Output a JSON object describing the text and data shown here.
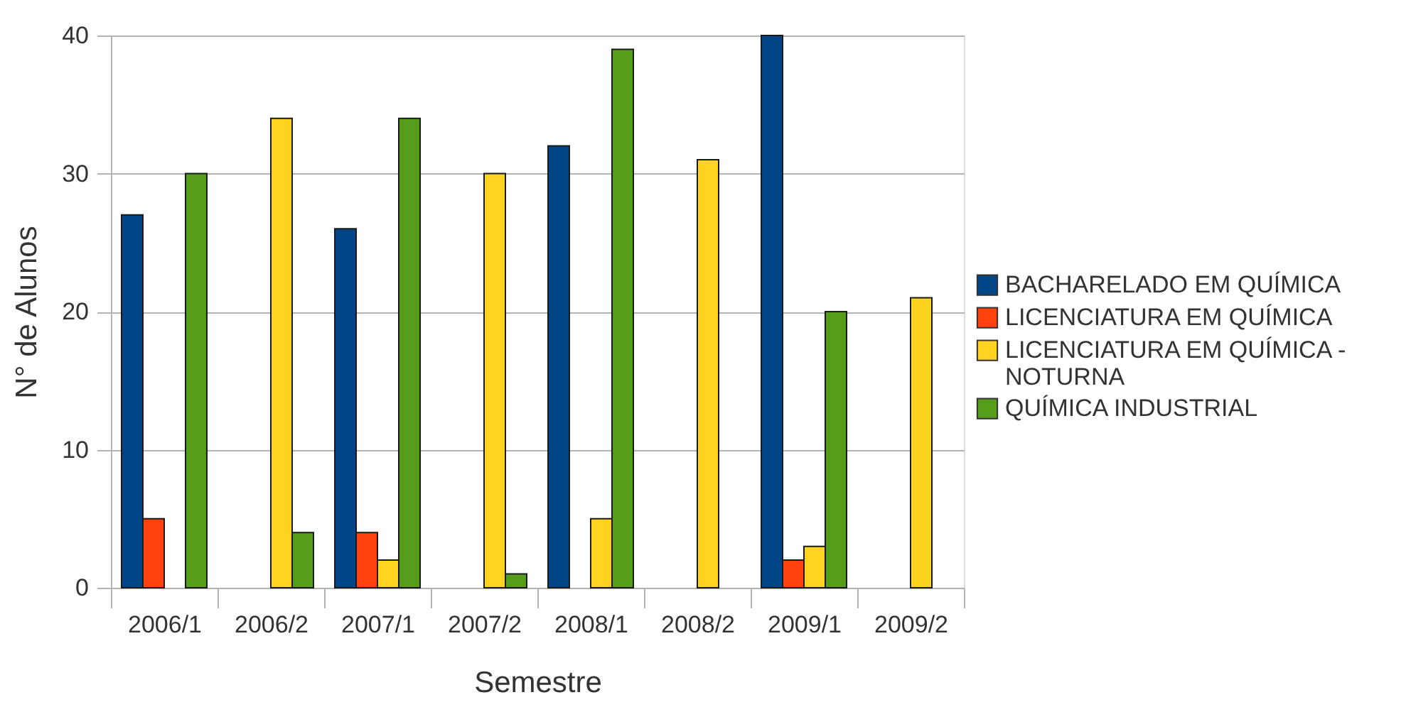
{
  "chart_data": {
    "type": "bar",
    "xlabel": "Semestre",
    "ylabel": "N° de Alunos",
    "categories": [
      "2006/1",
      "2006/2",
      "2007/1",
      "2007/2",
      "2008/1",
      "2008/2",
      "2009/1",
      "2009/2"
    ],
    "series": [
      {
        "name": "BACHARELADO EM QUÍMICA",
        "color": "#004586",
        "values": [
          27,
          null,
          26,
          null,
          32,
          null,
          40,
          null
        ]
      },
      {
        "name": "LICENCIATURA EM QUÍMICA",
        "color": "#ff420e",
        "values": [
          5,
          null,
          4,
          null,
          null,
          null,
          2,
          null
        ]
      },
      {
        "name": "LICENCIATURA EM QUÍMICA - NOTURNA",
        "color": "#ffd320",
        "values": [
          null,
          34,
          2,
          30,
          5,
          31,
          3,
          21
        ]
      },
      {
        "name": "QUÍMICA INDUSTRIAL",
        "color": "#579d1c",
        "values": [
          30,
          4,
          34,
          1,
          39,
          null,
          20,
          null
        ]
      }
    ],
    "ylim": [
      0,
      40
    ],
    "yticks": [
      0,
      10,
      20,
      30,
      40
    ],
    "grid": "y",
    "legend": "right"
  }
}
